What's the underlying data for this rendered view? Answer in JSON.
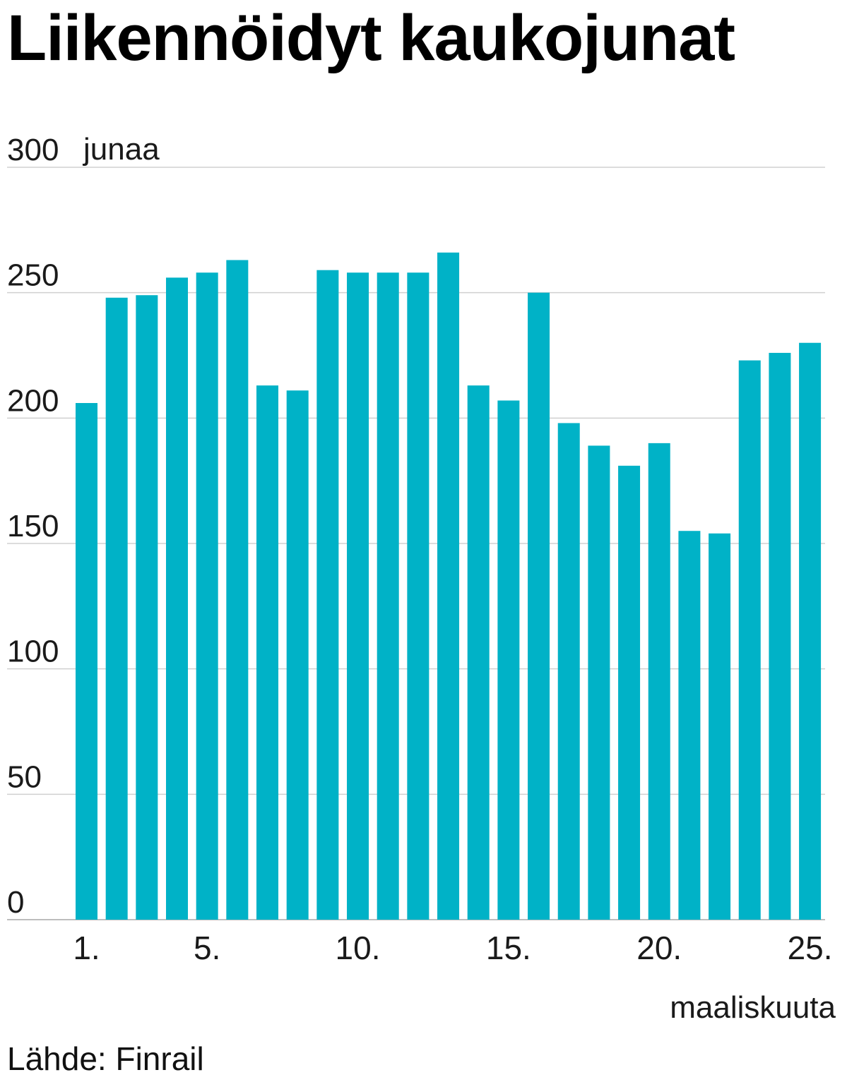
{
  "chart_data": {
    "type": "bar",
    "title": "Liikennöidyt kaukojunat",
    "ylabel": "junaa",
    "xlabel": "maaliskuuta",
    "ylim": [
      0,
      300
    ],
    "yticks": [
      0,
      50,
      100,
      150,
      200,
      250,
      300
    ],
    "x": [
      1,
      2,
      3,
      4,
      5,
      6,
      7,
      8,
      9,
      10,
      11,
      12,
      13,
      14,
      15,
      16,
      17,
      18,
      19,
      20,
      21,
      22,
      23,
      24,
      25
    ],
    "values": [
      206,
      248,
      249,
      256,
      258,
      263,
      213,
      211,
      259,
      258,
      258,
      258,
      266,
      213,
      207,
      250,
      198,
      189,
      181,
      190,
      155,
      154,
      223,
      226,
      230
    ],
    "x_tick_labels": [
      {
        "day": 1,
        "label": "1."
      },
      {
        "day": 5,
        "label": "5."
      },
      {
        "day": 10,
        "label": "10."
      },
      {
        "day": 15,
        "label": "15."
      },
      {
        "day": 20,
        "label": "20."
      },
      {
        "day": 25,
        "label": "25."
      }
    ],
    "source": "Lähde: Finrail",
    "bar_color": "#00b2c7",
    "grid_color": "#d0d0d0",
    "grid": true
  }
}
